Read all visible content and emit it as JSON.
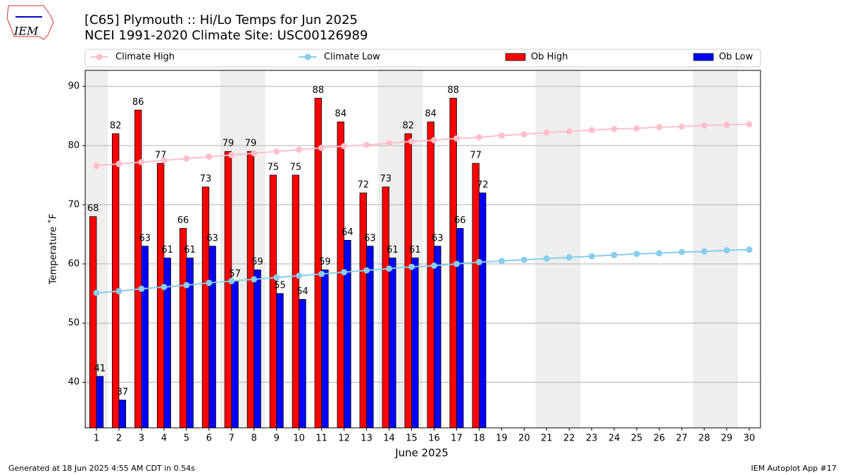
{
  "header": {
    "logo": "IEM"
  },
  "chart_data": {
    "type": "bar",
    "title": "[C65] Plymouth :: Hi/Lo Temps for Jun 2025",
    "subtitle": "NCEI 1991-2020 Climate Site: USC00126989",
    "xlabel": "June 2025",
    "ylabel": "Temperature ˚F",
    "categories": [
      "1",
      "2",
      "3",
      "4",
      "5",
      "6",
      "7",
      "8",
      "9",
      "10",
      "11",
      "12",
      "13",
      "14",
      "15",
      "16",
      "17",
      "18",
      "19",
      "20",
      "21",
      "22",
      "23",
      "24",
      "25",
      "26",
      "27",
      "28",
      "29",
      "30"
    ],
    "shaded_categories": [
      "1",
      "7",
      "8",
      "14",
      "15",
      "21",
      "22",
      "28",
      "29"
    ],
    "series": [
      {
        "name": "Climate High",
        "type": "line",
        "color": "#ffc0cb",
        "values": [
          76.6,
          76.9,
          77.2,
          77.5,
          77.8,
          78.1,
          78.4,
          78.7,
          79.0,
          79.3,
          79.6,
          79.9,
          80.1,
          80.4,
          80.7,
          80.9,
          81.2,
          81.4,
          81.7,
          81.9,
          82.2,
          82.4,
          82.6,
          82.8,
          82.9,
          83.1,
          83.2,
          83.4,
          83.5,
          83.6
        ]
      },
      {
        "name": "Climate Low",
        "type": "line",
        "color": "#87ceeb",
        "values": [
          55.1,
          55.4,
          55.8,
          56.1,
          56.4,
          56.8,
          57.1,
          57.4,
          57.7,
          58.0,
          58.3,
          58.6,
          58.9,
          59.2,
          59.5,
          59.7,
          60.0,
          60.3,
          60.5,
          60.7,
          60.9,
          61.1,
          61.3,
          61.5,
          61.7,
          61.8,
          62.0,
          62.1,
          62.3,
          62.4
        ]
      },
      {
        "name": "Ob High",
        "type": "bar",
        "color": "#ff0000",
        "values": [
          68,
          82,
          86,
          77,
          66,
          73,
          79,
          79,
          75,
          75,
          88,
          84,
          72,
          73,
          82,
          84,
          88,
          77,
          null,
          null,
          null,
          null,
          null,
          null,
          null,
          null,
          null,
          null,
          null,
          null
        ]
      },
      {
        "name": "Ob Low",
        "type": "bar",
        "color": "#0000ff",
        "values": [
          41,
          37,
          63,
          61,
          61,
          63,
          57,
          59,
          55,
          54,
          59,
          64,
          63,
          61,
          61,
          63,
          66,
          72,
          null,
          null,
          null,
          null,
          null,
          null,
          null,
          null,
          null,
          null,
          null,
          null
        ]
      }
    ],
    "ylim": [
      32.3,
      92.7
    ],
    "yticks": [
      40,
      50,
      60,
      70,
      80,
      90
    ],
    "grid": true,
    "legend": "top"
  },
  "footer": {
    "left": "Generated at 18 Jun 2025 4:55 AM CDT in 0.54s",
    "right": "IEM Autoplot App #17"
  }
}
